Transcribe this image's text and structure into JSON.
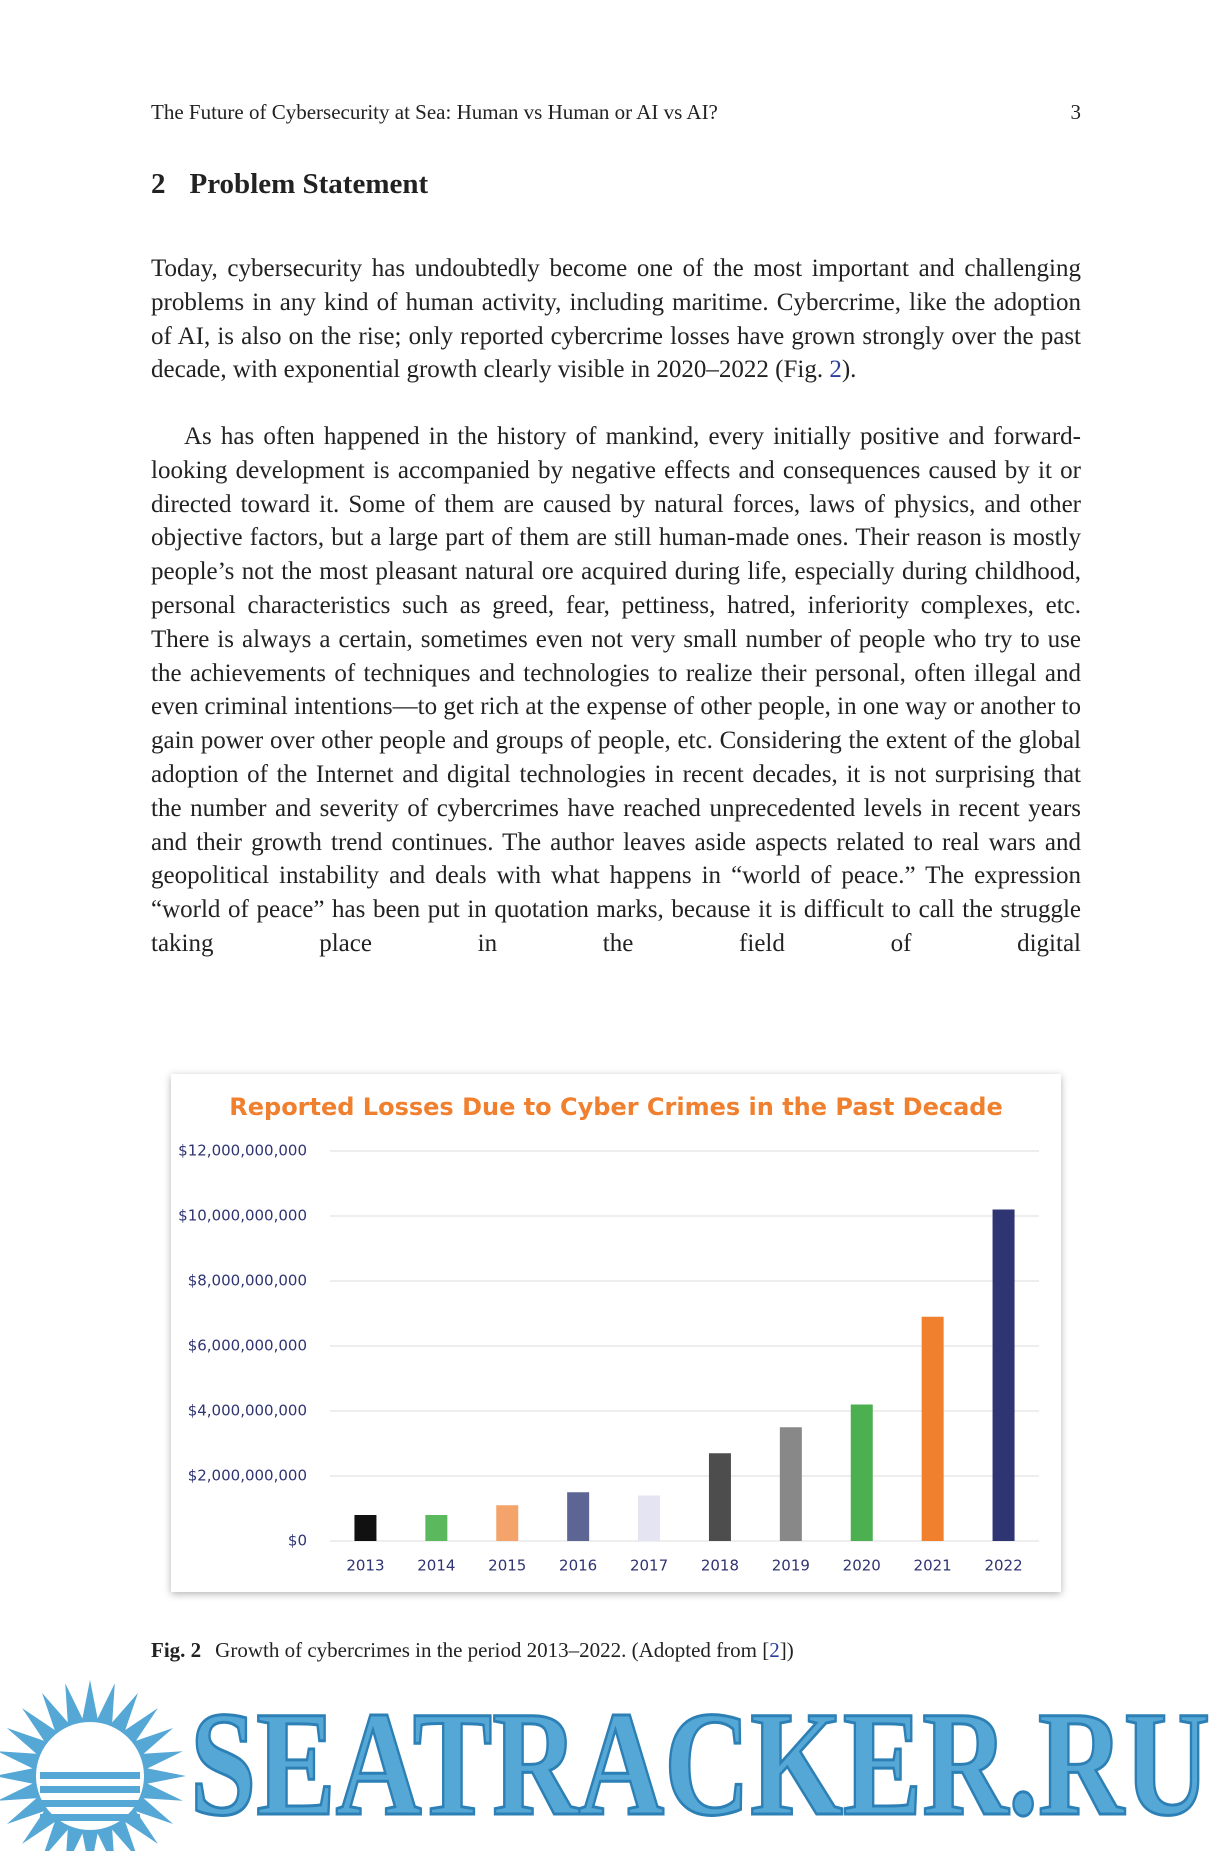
{
  "header": {
    "title": "The Future of Cybersecurity at Sea: Human vs Human or AI vs AI?",
    "page": "3"
  },
  "section": {
    "number": "2",
    "title": "Problem Statement"
  },
  "paragraphs": [
    [
      "Today, cybersecurity has undoubtedly become one of the most important and challenging problems in any kind of human activity, including maritime. Cybercrime, like the adoption of AI, is also on the rise; only reported cybercrime losses have grown strongly over the past decade, with exponential growth clearly visible in 2020–2022 (Fig. ",
      "2",
      ")."
    ],
    [
      "As has often happened in the history of mankind, every initially positive and forward-looking development is accompanied by negative effects and consequences caused by it or directed toward it. Some of them are caused by natural forces, laws of physics, and other objective factors, but a large part of them are still human-made ones. Their reason is mostly people’s not the most pleasant natural ore acquired during life, especially during childhood, personal characteristics such as greed, fear, pettiness, hatred, inferiority complexes, etc. There is always a certain, sometimes even not very small number of people who try to use the achievements of techniques and technologies to realize their personal, often illegal and even criminal intentions—to get rich at the expense of other people, in one way or another to gain power over other people and groups of people, etc. Considering the extent of the global adoption of the Internet and digital technologies in recent decades, it is not surprising that the number and severity of cybercrimes have reached unprecedented levels in recent years and their growth trend continues. The author leaves aside aspects related to real wars and geopolitical instability and deals with what happens in “world of peace.” The expression “world of peace” has been put in quotation marks, because it is difficult to call the struggle taking place in the field of digital"
    ]
  ],
  "chart_data": {
    "type": "bar",
    "title": "Reported Losses Due to Cyber Crimes in the Past Decade",
    "categories": [
      "2013",
      "2014",
      "2015",
      "2016",
      "2017",
      "2018",
      "2019",
      "2020",
      "2021",
      "2022"
    ],
    "values": [
      800000000,
      800000000,
      1100000000,
      1500000000,
      1400000000,
      2700000000,
      3500000000,
      4200000000,
      6900000000,
      10200000000
    ],
    "colors": [
      "#111111",
      "#5cb85c",
      "#f4a36a",
      "#5d6594",
      "#e4e4f2",
      "#4d4d4d",
      "#888888",
      "#4caf50",
      "#f07f2e",
      "#2f3473"
    ],
    "ylim": [
      0,
      12000000000
    ],
    "yticks": [
      {
        "value": 0,
        "label": "$0"
      },
      {
        "value": 2000000000,
        "label": "$2,000,000,000"
      },
      {
        "value": 4000000000,
        "label": "$4,000,000,000"
      },
      {
        "value": 6000000000,
        "label": "$6,000,000,000"
      },
      {
        "value": 8000000000,
        "label": "$8,000,000,000"
      },
      {
        "value": 10000000000,
        "label": "$10,000,000,000"
      },
      {
        "value": 12000000000,
        "label": "$12,000,000,000"
      }
    ],
    "grid": true
  },
  "caption": {
    "label": "Fig. 2",
    "text": "Growth of cybercrimes in the period 2013–2022. (Adopted from [",
    "ref": "2",
    "end": "])"
  },
  "watermark": "SEATRACKER.RU"
}
